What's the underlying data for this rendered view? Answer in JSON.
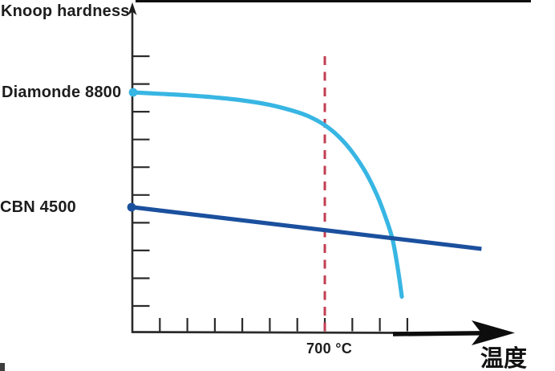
{
  "page": {
    "background": "#ffffff"
  },
  "labels": {
    "y_axis_title": "Knoop hardness",
    "diamond": "Diamonde 8800",
    "cbn": "CBN 4500",
    "vline_label": "700 °C",
    "x_axis_title": "温度"
  },
  "colors": {
    "diamond": "#38b6e3",
    "cbn": "#1b509e",
    "reference_line": "#c23e52",
    "axis": "#2b2b2b",
    "text": "#1d1d1d"
  },
  "chart_data": {
    "type": "line",
    "title": "",
    "ylabel": "Knoop hardness",
    "xlabel": "温度",
    "x_unit": "°C",
    "xlim": [
      0,
      1300
    ],
    "ylim": [
      0,
      10300
    ],
    "grid": false,
    "legend_position": "left-margin-labels",
    "x_axis": {
      "ticks_c": [
        100,
        200,
        300,
        400,
        500,
        600,
        700,
        800,
        900,
        1000
      ],
      "labeled_tick": 700,
      "arrow": true
    },
    "y_axis": {
      "unlabeled_tick_count": 10,
      "arrow": true
    },
    "series": [
      {
        "name": "diamond",
        "label": "Diamonde 8800",
        "color": "#38b6e3",
        "start_hardness": 8800,
        "marker_at_start": true,
        "points": [
          [
            0,
            8800
          ],
          [
            100,
            8745
          ],
          [
            200,
            8690
          ],
          [
            300,
            8610
          ],
          [
            400,
            8500
          ],
          [
            500,
            8330
          ],
          [
            600,
            8060
          ],
          [
            650,
            7860
          ],
          [
            700,
            7570
          ],
          [
            750,
            7150
          ],
          [
            800,
            6560
          ],
          [
            850,
            5780
          ],
          [
            890,
            4950
          ],
          [
            920,
            4150
          ],
          [
            945,
            3350
          ],
          [
            960,
            2550
          ],
          [
            972,
            1750
          ],
          [
            980,
            1150
          ]
        ]
      },
      {
        "name": "cbn",
        "label": "CBN 4500",
        "color": "#1b509e",
        "start_hardness": 4500,
        "marker_at_start": true,
        "points": [
          [
            0,
            4500
          ],
          [
            1270,
            2940
          ]
        ]
      }
    ],
    "annotations": [
      {
        "type": "vline",
        "x": 700,
        "label": "700 °C",
        "color": "#c23e52",
        "style": "dashed"
      }
    ]
  }
}
